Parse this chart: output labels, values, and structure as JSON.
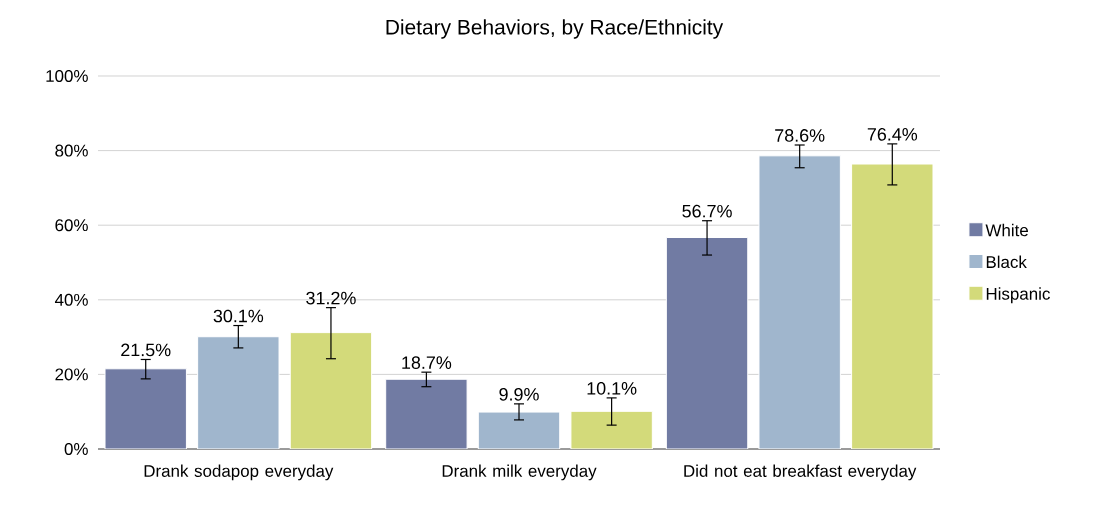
{
  "chart_data": {
    "type": "bar",
    "title": "Dietary Behaviors, by Race/Ethnicity",
    "categories": [
      "Drank sodapop everyday",
      "Drank milk everyday",
      "Did not eat breakfast everyday"
    ],
    "series": [
      {
        "name": "White",
        "color": "#717ba3",
        "values": [
          21.5,
          18.7,
          56.7
        ],
        "value_labels": [
          "21.5%",
          "18.7%",
          "56.7%"
        ],
        "errors": [
          [
            18.8,
            24.0
          ],
          [
            16.7,
            20.6
          ],
          [
            52.0,
            61.2
          ]
        ]
      },
      {
        "name": "Black",
        "color": "#a0b6cd",
        "values": [
          30.1,
          9.9,
          78.6
        ],
        "value_labels": [
          "30.1%",
          "9.9%",
          "78.6%"
        ],
        "errors": [
          [
            27.1,
            33.1
          ],
          [
            7.8,
            12.1
          ],
          [
            75.4,
            81.5
          ]
        ]
      },
      {
        "name": "Hispanic",
        "color": "#d3da7a",
        "values": [
          31.2,
          10.1,
          76.4
        ],
        "value_labels": [
          "31.2%",
          "10.1%",
          "76.4%"
        ],
        "errors": [
          [
            24.2,
            37.9
          ],
          [
            6.4,
            13.7
          ],
          [
            70.8,
            81.8
          ]
        ]
      }
    ],
    "ylim": [
      0,
      100
    ],
    "yticks": [
      {
        "value": 0,
        "label": "0%"
      },
      {
        "value": 20,
        "label": "20%"
      },
      {
        "value": 40,
        "label": "40%"
      },
      {
        "value": 60,
        "label": "60%"
      },
      {
        "value": 80,
        "label": "80%"
      },
      {
        "value": 100,
        "label": "100%"
      }
    ],
    "grid": "y",
    "legend": "right"
  }
}
